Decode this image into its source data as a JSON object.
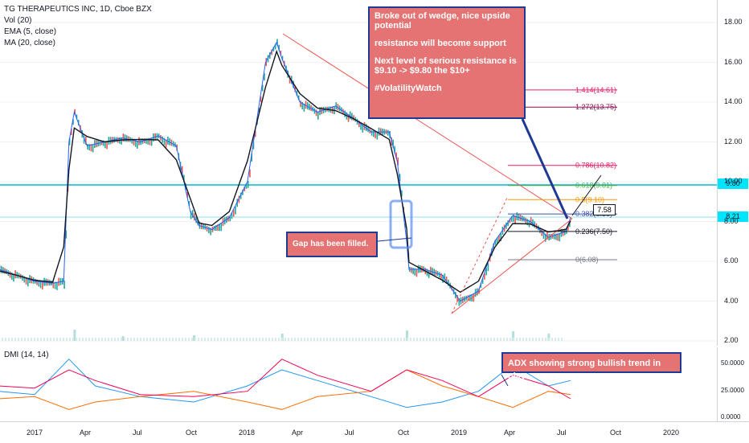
{
  "legend": {
    "symbol": "TG THERAPEUTICS INC, 1D, Cboe BZX",
    "vol": "Vol (20)",
    "ema": "EMA (5, close)",
    "ma": "MA (20, close)",
    "dmi": "DMI (14, 14)"
  },
  "annotations": {
    "wedge": {
      "line1": "Broke out of wedge, nice upside",
      "line2": "potential",
      "line3": "resistance will become support",
      "line4": "Next level of serious resistance is",
      "line5": "$9.10 -> $9.80 the $10+",
      "line6": "#VolatilityWatch"
    },
    "gap": "Gap has been filled.",
    "adx": "ADX showing strong bullish trend in play"
  },
  "price_tags": {
    "level_980": "9.80",
    "last_price": "8.21",
    "box_price": "7.58"
  },
  "fib_levels": [
    {
      "label": "1.414(14.61)",
      "price": 14.61,
      "color": "#e91e63"
    },
    {
      "label": "1.272(13.75)",
      "price": 13.75,
      "color": "#880e4f"
    },
    {
      "label": "0.786(10.82)",
      "price": 10.82,
      "color": "#e91e63"
    },
    {
      "label": "0.618(9.81)",
      "price": 9.81,
      "color": "#4caf50"
    },
    {
      "label": "0.5(9.10)",
      "price": 9.1,
      "color": "#ff9800"
    },
    {
      "label": "0.382(8.38)",
      "price": 8.38,
      "color": "#3f51b5"
    },
    {
      "label": "0.236(7.50)",
      "price": 7.5,
      "color": "#131722"
    },
    {
      "label": "0(6.08)",
      "price": 6.08,
      "color": "#787b86"
    }
  ],
  "colors": {
    "candle_up": "#26a69a",
    "candle_down": "#ef5350",
    "ema": "#2962ff",
    "ma": "#131722",
    "cyan_line": "#00bcd4",
    "annotation_bg": "#e57373",
    "annotation_border": "#1f3a93",
    "dmi_plus": "#2196f3",
    "dmi_minus": "#ff6d00",
    "adx": "#f50057"
  },
  "chart_data": [
    {
      "type": "line",
      "title": "TG THERAPEUTICS INC, 1D, Cboe BZX",
      "ylim": [
        2.0,
        19.0
      ],
      "y_ticks": [
        "18.00",
        "16.00",
        "14.00",
        "12.00",
        "10.00",
        "8.00",
        "6.00",
        "4.00",
        "2.00"
      ],
      "x_ticks": [
        "2017",
        "Apr",
        "Jul",
        "Oct",
        "2018",
        "Apr",
        "Jul",
        "Oct",
        "2019",
        "Apr",
        "Jul",
        "Oct",
        "2020"
      ],
      "x": [
        "2016-11-01",
        "2016-12-01",
        "2017-01-01",
        "2017-02-01",
        "2017-02-20",
        "2017-03-01",
        "2017-03-10",
        "2017-04-01",
        "2017-05-01",
        "2017-06-01",
        "2017-07-01",
        "2017-08-01",
        "2017-09-01",
        "2017-09-25",
        "2017-10-10",
        "2017-11-01",
        "2017-12-01",
        "2018-01-01",
        "2018-02-01",
        "2018-02-20",
        "2018-03-01",
        "2018-04-01",
        "2018-05-01",
        "2018-06-01",
        "2018-07-01",
        "2018-08-01",
        "2018-09-01",
        "2018-09-15",
        "2018-10-01",
        "2018-10-05",
        "2018-11-01",
        "2018-12-01",
        "2019-01-01",
        "2019-02-01",
        "2019-03-01",
        "2019-04-01",
        "2019-05-01",
        "2019-06-01",
        "2019-07-01",
        "2019-07-09"
      ],
      "series": [
        {
          "values": [
            5.6,
            5.3,
            5.0,
            4.9,
            5.0,
            12.0,
            13.5,
            11.8,
            12.0,
            12.2,
            12.0,
            12.3,
            11.8,
            8.5,
            7.8,
            7.6,
            8.2,
            10.0,
            16.0,
            17.0,
            16.2,
            14.0,
            13.5,
            13.8,
            13.2,
            12.5,
            12.5,
            11.0,
            7.0,
            5.6,
            5.6,
            5.3,
            4.0,
            4.5,
            7.0,
            8.3,
            8.0,
            7.2,
            7.5,
            8.21
          ]
        }
      ]
    },
    {
      "type": "bar",
      "title": "Vol (20)",
      "x": [
        "2017-03-10",
        "2017-06-01",
        "2017-10-01",
        "2018-03-01",
        "2018-10-01",
        "2019-04-01",
        "2019-06-01"
      ],
      "values": [
        14,
        6,
        7,
        9,
        13,
        12,
        9
      ]
    },
    {
      "type": "line",
      "title": "DMI (14, 14)",
      "ylim": [
        0,
        60
      ],
      "y_ticks": [
        "50.0000",
        "25.0000",
        "0.0000"
      ],
      "x": [
        "2016-11-01",
        "2017-01-01",
        "2017-03-01",
        "2017-04-15",
        "2017-07-01",
        "2017-10-01",
        "2018-01-01",
        "2018-03-01",
        "2018-05-01",
        "2018-08-01",
        "2018-10-01",
        "2018-12-01",
        "2019-02-01",
        "2019-04-01",
        "2019-06-01",
        "2019-07-09"
      ],
      "series": [
        {
          "values": [
            25,
            22,
            55,
            30,
            20,
            15,
            30,
            45,
            35,
            20,
            10,
            15,
            25,
            50,
            30,
            35
          ]
        },
        {
          "values": [
            18,
            20,
            8,
            15,
            20,
            25,
            15,
            8,
            20,
            25,
            45,
            30,
            20,
            10,
            25,
            22
          ]
        },
        {
          "values": [
            30,
            28,
            45,
            35,
            22,
            20,
            25,
            55,
            40,
            25,
            45,
            35,
            20,
            40,
            30,
            18
          ]
        }
      ]
    }
  ]
}
